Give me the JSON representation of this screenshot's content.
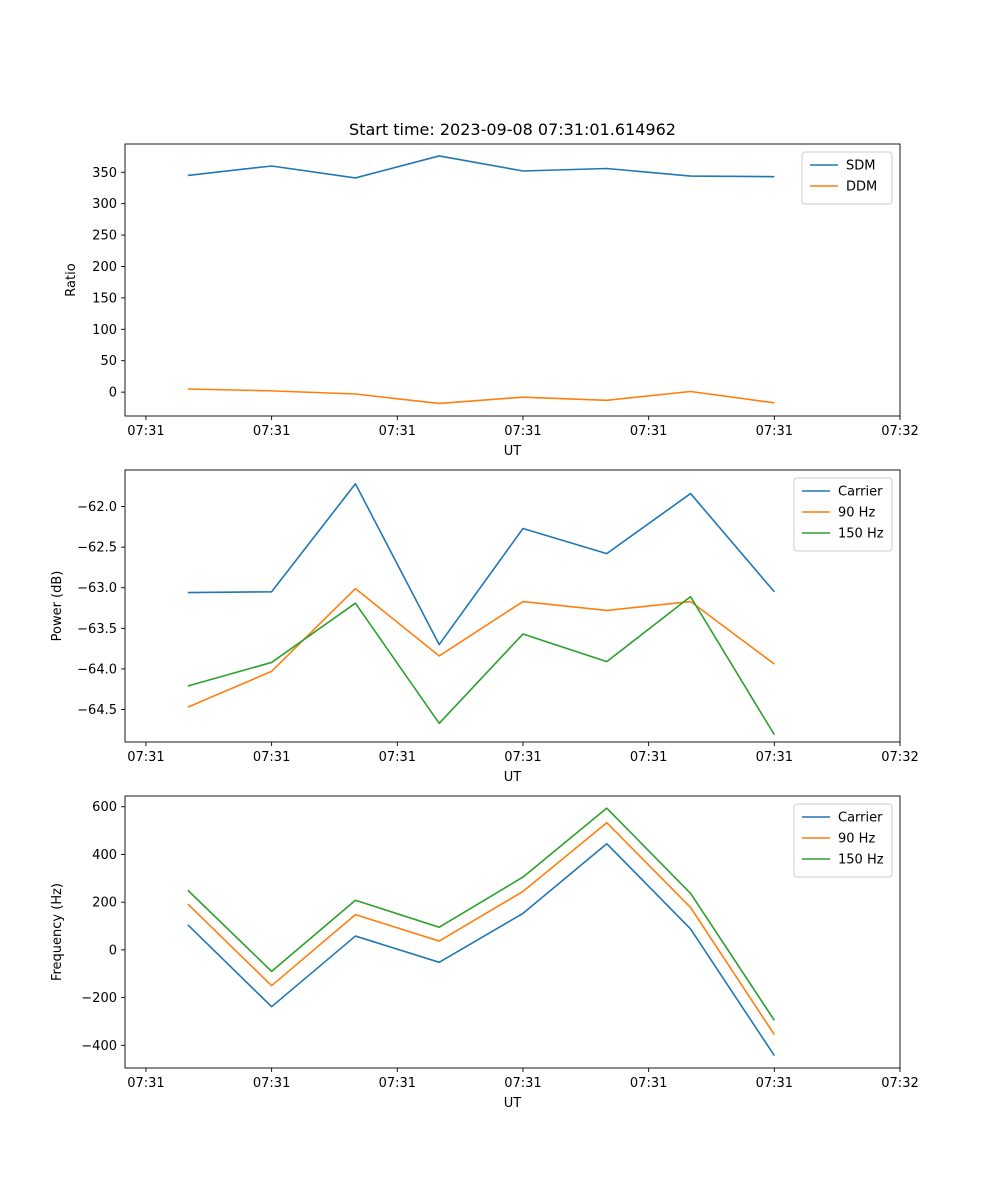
{
  "figure": {
    "title": "Start time: 2023-09-08 07:31:01.614962"
  },
  "chart_data": [
    {
      "type": "line",
      "title": "Start time: 2023-09-08 07:31:01.614962",
      "xlabel": "UT",
      "ylabel": "Ratio",
      "x": [
        0,
        1,
        2,
        3,
        4,
        5,
        6,
        7
      ],
      "xlim": [
        -0.75,
        8.5
      ],
      "ylim": [
        -38,
        395
      ],
      "x_ticks": [
        {
          "value": -0.5,
          "label": "07:31"
        },
        {
          "value": 1,
          "label": "07:31"
        },
        {
          "value": 2.5,
          "label": "07:31"
        },
        {
          "value": 4,
          "label": "07:31"
        },
        {
          "value": 5.5,
          "label": "07:31"
        },
        {
          "value": 7,
          "label": "07:31"
        },
        {
          "value": 8.5,
          "label": "07:32"
        }
      ],
      "y_ticks": [
        0,
        50,
        100,
        150,
        200,
        250,
        300,
        350
      ],
      "y_tick_labels": [
        "0",
        "50",
        "100",
        "150",
        "200",
        "250",
        "300",
        "350"
      ],
      "legend_position": "top-right",
      "series": [
        {
          "name": "SDM",
          "color": "#1f77b4",
          "values": [
            345,
            360,
            341,
            376,
            352,
            356,
            344,
            343
          ]
        },
        {
          "name": "DDM",
          "color": "#ff7f0e",
          "values": [
            5,
            2,
            -3,
            -18,
            -8,
            -13,
            1,
            -17
          ]
        }
      ]
    },
    {
      "type": "line",
      "title": "",
      "xlabel": "UT",
      "ylabel": "Power (dB)",
      "x": [
        0,
        1,
        2,
        3,
        4,
        5,
        6,
        7
      ],
      "xlim": [
        -0.75,
        8.5
      ],
      "ylim": [
        -64.9,
        -61.55
      ],
      "x_ticks": [
        {
          "value": -0.5,
          "label": "07:31"
        },
        {
          "value": 1,
          "label": "07:31"
        },
        {
          "value": 2.5,
          "label": "07:31"
        },
        {
          "value": 4,
          "label": "07:31"
        },
        {
          "value": 5.5,
          "label": "07:31"
        },
        {
          "value": 7,
          "label": "07:31"
        },
        {
          "value": 8.5,
          "label": "07:32"
        }
      ],
      "y_ticks": [
        -64.5,
        -64.0,
        -63.5,
        -63.0,
        -62.5,
        -62.0
      ],
      "y_tick_labels": [
        "−64.5",
        "−64.0",
        "−63.5",
        "−63.0",
        "−62.5",
        "−62.0"
      ],
      "legend_position": "top-right",
      "series": [
        {
          "name": "Carrier",
          "color": "#1f77b4",
          "values": [
            -63.06,
            -63.05,
            -61.72,
            -63.7,
            -62.27,
            -62.58,
            -61.84,
            -63.05
          ]
        },
        {
          "name": "90 Hz",
          "color": "#ff7f0e",
          "values": [
            -64.47,
            -64.03,
            -63.01,
            -63.84,
            -63.17,
            -63.28,
            -63.17,
            -63.94
          ]
        },
        {
          "name": "150 Hz",
          "color": "#2ca02c",
          "values": [
            -64.21,
            -63.92,
            -63.19,
            -64.67,
            -63.57,
            -63.91,
            -63.11,
            -64.81
          ]
        }
      ]
    },
    {
      "type": "line",
      "title": "",
      "xlabel": "UT",
      "ylabel": "Frequency (Hz)",
      "x": [
        0,
        1,
        2,
        3,
        4,
        5,
        6,
        7
      ],
      "xlim": [
        -0.75,
        8.5
      ],
      "ylim": [
        -495,
        645
      ],
      "x_ticks": [
        {
          "value": -0.5,
          "label": "07:31"
        },
        {
          "value": 1,
          "label": "07:31"
        },
        {
          "value": 2.5,
          "label": "07:31"
        },
        {
          "value": 4,
          "label": "07:31"
        },
        {
          "value": 5.5,
          "label": "07:31"
        },
        {
          "value": 7,
          "label": "07:31"
        },
        {
          "value": 8.5,
          "label": "07:32"
        }
      ],
      "y_ticks": [
        -400,
        -200,
        0,
        200,
        400,
        600
      ],
      "y_tick_labels": [
        "−400",
        "−200",
        "0",
        "200",
        "400",
        "600"
      ],
      "legend_position": "top-right",
      "series": [
        {
          "name": "Carrier",
          "color": "#1f77b4",
          "values": [
            105,
            -238,
            58,
            -52,
            153,
            445,
            88,
            -443
          ]
        },
        {
          "name": "90 Hz",
          "color": "#ff7f0e",
          "values": [
            192,
            -150,
            148,
            37,
            245,
            533,
            178,
            -355
          ]
        },
        {
          "name": "150 Hz",
          "color": "#2ca02c",
          "values": [
            250,
            -90,
            208,
            95,
            305,
            594,
            237,
            -295
          ]
        }
      ]
    }
  ]
}
